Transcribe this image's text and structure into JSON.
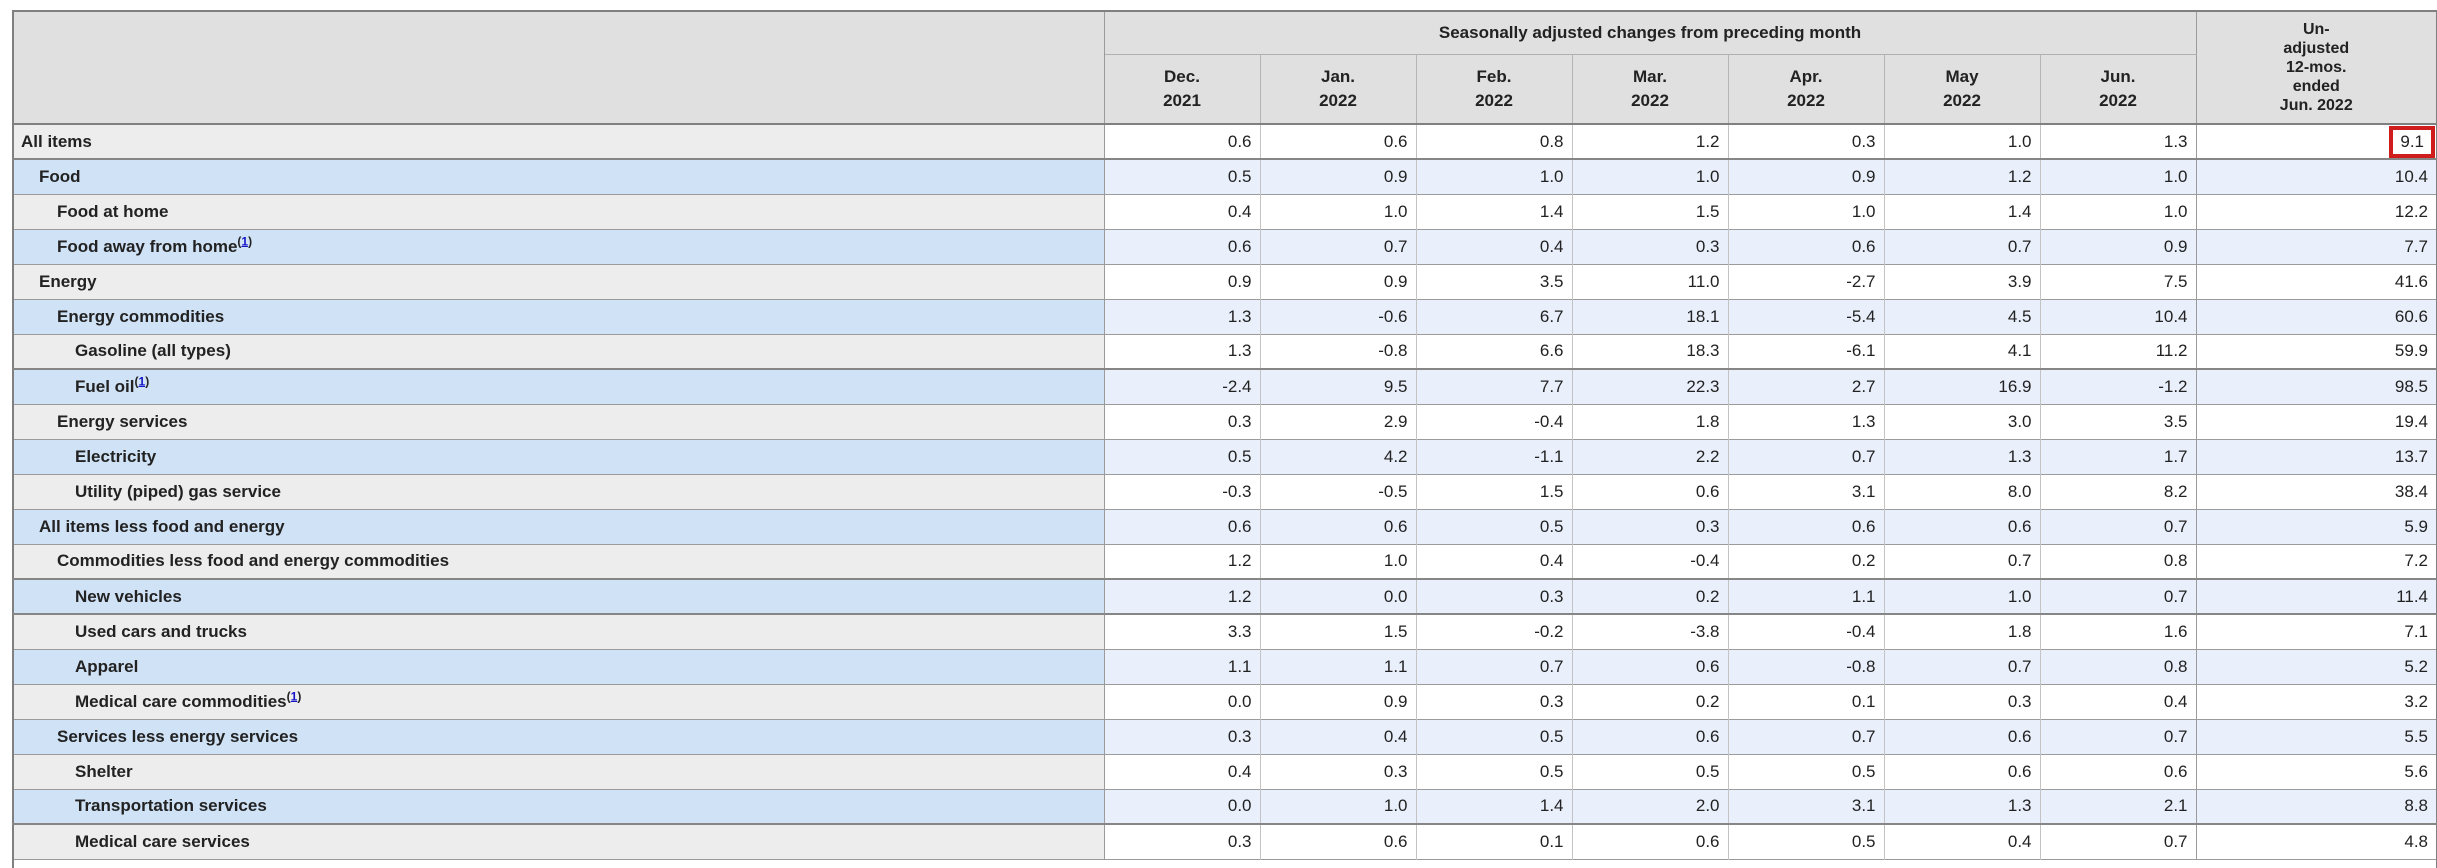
{
  "table": {
    "group_header": "Seasonally adjusted changes from preceding month",
    "unadjusted_header_lines": [
      "Un-",
      "adjusted",
      "12-mos.",
      "ended",
      "Jun. 2022"
    ],
    "months": [
      {
        "line1": "Dec.",
        "line2": "2021"
      },
      {
        "line1": "Jan.",
        "line2": "2022"
      },
      {
        "line1": "Feb.",
        "line2": "2022"
      },
      {
        "line1": "Mar.",
        "line2": "2022"
      },
      {
        "line1": "Apr.",
        "line2": "2022"
      },
      {
        "line1": "May",
        "line2": "2022"
      },
      {
        "line1": "Jun.",
        "line2": "2022"
      }
    ],
    "footnote_symbol": "1",
    "rows": [
      {
        "label": "All items",
        "indent": 0,
        "footnote": false,
        "values": [
          "0.6",
          "0.6",
          "0.8",
          "1.2",
          "0.3",
          "1.0",
          "1.3"
        ],
        "yoy": "9.1",
        "highlight": true
      },
      {
        "label": "Food",
        "indent": 1,
        "footnote": false,
        "values": [
          "0.5",
          "0.9",
          "1.0",
          "1.0",
          "0.9",
          "1.2",
          "1.0"
        ],
        "yoy": "10.4",
        "highlight": false
      },
      {
        "label": "Food at home",
        "indent": 2,
        "footnote": false,
        "values": [
          "0.4",
          "1.0",
          "1.4",
          "1.5",
          "1.0",
          "1.4",
          "1.0"
        ],
        "yoy": "12.2",
        "highlight": false
      },
      {
        "label": "Food away from home",
        "indent": 2,
        "footnote": true,
        "values": [
          "0.6",
          "0.7",
          "0.4",
          "0.3",
          "0.6",
          "0.7",
          "0.9"
        ],
        "yoy": "7.7",
        "highlight": false
      },
      {
        "label": "Energy",
        "indent": 1,
        "footnote": false,
        "values": [
          "0.9",
          "0.9",
          "3.5",
          "11.0",
          "-2.7",
          "3.9",
          "7.5"
        ],
        "yoy": "41.6",
        "highlight": false
      },
      {
        "label": "Energy commodities",
        "indent": 2,
        "footnote": false,
        "values": [
          "1.3",
          "-0.6",
          "6.7",
          "18.1",
          "-5.4",
          "4.5",
          "10.4"
        ],
        "yoy": "60.6",
        "highlight": false
      },
      {
        "label": "Gasoline (all types)",
        "indent": 3,
        "footnote": false,
        "values": [
          "1.3",
          "-0.8",
          "6.6",
          "18.3",
          "-6.1",
          "4.1",
          "11.2"
        ],
        "yoy": "59.9",
        "highlight": false
      },
      {
        "label": "Fuel oil",
        "indent": 3,
        "footnote": true,
        "values": [
          "-2.4",
          "9.5",
          "7.7",
          "22.3",
          "2.7",
          "16.9",
          "-1.2"
        ],
        "yoy": "98.5",
        "highlight": false
      },
      {
        "label": "Energy services",
        "indent": 2,
        "footnote": false,
        "values": [
          "0.3",
          "2.9",
          "-0.4",
          "1.8",
          "1.3",
          "3.0",
          "3.5"
        ],
        "yoy": "19.4",
        "highlight": false
      },
      {
        "label": "Electricity",
        "indent": 3,
        "footnote": false,
        "values": [
          "0.5",
          "4.2",
          "-1.1",
          "2.2",
          "0.7",
          "1.3",
          "1.7"
        ],
        "yoy": "13.7",
        "highlight": false
      },
      {
        "label": "Utility (piped) gas service",
        "indent": 3,
        "footnote": false,
        "values": [
          "-0.3",
          "-0.5",
          "1.5",
          "0.6",
          "3.1",
          "8.0",
          "8.2"
        ],
        "yoy": "38.4",
        "highlight": false
      },
      {
        "label": "All items less food and energy",
        "indent": 1,
        "footnote": false,
        "values": [
          "0.6",
          "0.6",
          "0.5",
          "0.3",
          "0.6",
          "0.6",
          "0.7"
        ],
        "yoy": "5.9",
        "highlight": false
      },
      {
        "label": "Commodities less food and energy commodities",
        "indent": 2,
        "footnote": false,
        "values": [
          "1.2",
          "1.0",
          "0.4",
          "-0.4",
          "0.2",
          "0.7",
          "0.8"
        ],
        "yoy": "7.2",
        "highlight": false
      },
      {
        "label": "New vehicles",
        "indent": 3,
        "footnote": false,
        "values": [
          "1.2",
          "0.0",
          "0.3",
          "0.2",
          "1.1",
          "1.0",
          "0.7"
        ],
        "yoy": "11.4",
        "highlight": false
      },
      {
        "label": "Used cars and trucks",
        "indent": 3,
        "footnote": false,
        "values": [
          "3.3",
          "1.5",
          "-0.2",
          "-3.8",
          "-0.4",
          "1.8",
          "1.6"
        ],
        "yoy": "7.1",
        "highlight": false
      },
      {
        "label": "Apparel",
        "indent": 3,
        "footnote": false,
        "values": [
          "1.1",
          "1.1",
          "0.7",
          "0.6",
          "-0.8",
          "0.7",
          "0.8"
        ],
        "yoy": "5.2",
        "highlight": false
      },
      {
        "label": "Medical care commodities",
        "indent": 3,
        "footnote": true,
        "values": [
          "0.0",
          "0.9",
          "0.3",
          "0.2",
          "0.1",
          "0.3",
          "0.4"
        ],
        "yoy": "3.2",
        "highlight": false
      },
      {
        "label": "Services less energy services",
        "indent": 2,
        "footnote": false,
        "values": [
          "0.3",
          "0.4",
          "0.5",
          "0.6",
          "0.7",
          "0.6",
          "0.7"
        ],
        "yoy": "5.5",
        "highlight": false
      },
      {
        "label": "Shelter",
        "indent": 3,
        "footnote": false,
        "values": [
          "0.4",
          "0.3",
          "0.5",
          "0.5",
          "0.5",
          "0.6",
          "0.6"
        ],
        "yoy": "5.6",
        "highlight": false
      },
      {
        "label": "Transportation services",
        "indent": 3,
        "footnote": false,
        "values": [
          "0.0",
          "1.0",
          "1.4",
          "2.0",
          "3.1",
          "1.3",
          "2.1"
        ],
        "yoy": "8.8",
        "highlight": false
      },
      {
        "label": "Medical care services",
        "indent": 3,
        "footnote": false,
        "values": [
          "0.3",
          "0.6",
          "0.1",
          "0.6",
          "0.5",
          "0.4",
          "0.7"
        ],
        "yoy": "4.8",
        "highlight": false
      }
    ]
  },
  "colors": {
    "header_bg": "#e0e0e0",
    "label_gray": "#ededed",
    "label_blue": "#d0e2f6",
    "data_blue": "#e9effb",
    "data_white": "#ffffff",
    "border_dark": "#808080",
    "border_mid": "#9b9b9b",
    "border_light": "#c3c3c3",
    "text": "#222222",
    "link_blue": "#1414c8",
    "highlight_red": "#cf1d1d"
  }
}
